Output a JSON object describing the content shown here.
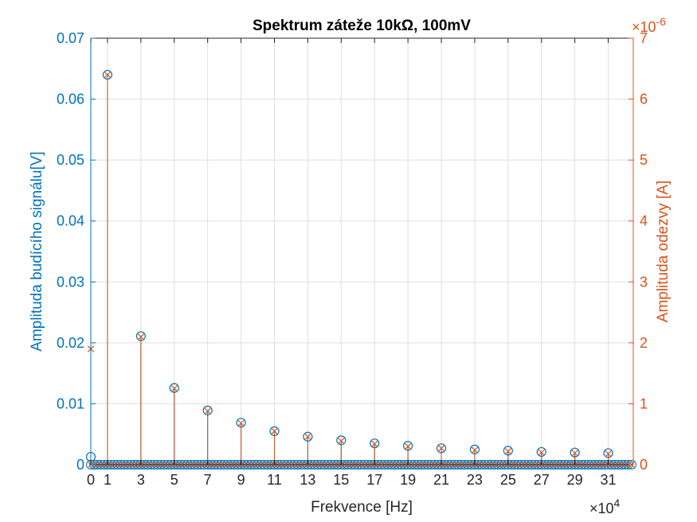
{
  "chart_data": {
    "type": "stem",
    "title": "Spektrum záteže 10kΩ, 100mV",
    "xlabel": "Frekvence [Hz]",
    "x_exponent_label": "×10",
    "x_exponent_power": "4",
    "ylabel_left": "Amplituda budícího signálu[V]",
    "ylabel_right": "Amplituda odezvy [A]",
    "y_right_exponent_label": "×10",
    "y_right_exponent_power": "-6",
    "xlim": [
      0,
      32.5
    ],
    "ylim_left": [
      0,
      0.07
    ],
    "ylim_right": [
      0,
      7
    ],
    "x_ticks": [
      0,
      1,
      3,
      5,
      7,
      9,
      11,
      13,
      15,
      17,
      19,
      21,
      23,
      25,
      27,
      29,
      31
    ],
    "y_left_ticks": [
      0,
      0.01,
      0.02,
      0.03,
      0.04,
      0.05,
      0.06,
      0.07
    ],
    "y_left_tick_labels": [
      "0",
      "0.01",
      "0.02",
      "0.03",
      "0.04",
      "0.05",
      "0.06",
      "0.07"
    ],
    "y_right_ticks": [
      0,
      1,
      2,
      3,
      4,
      5,
      6,
      7
    ],
    "y_right_tick_labels": [
      "0",
      "1",
      "2",
      "3",
      "4",
      "5",
      "6",
      "7"
    ],
    "grid": true,
    "colors": {
      "left": "#0072BD",
      "right": "#D95319",
      "grid": "#dfdfdf",
      "axes": "#262626"
    },
    "floor_step": 0.2,
    "series": [
      {
        "name": "",
        "axis": "left",
        "marker": "circle",
        "x": [
          0,
          1,
          3,
          5,
          7,
          9,
          11,
          13,
          15,
          17,
          19,
          21,
          23,
          25,
          27,
          29,
          31
        ],
        "values": [
          0.0013,
          0.064,
          0.0211,
          0.0126,
          0.0089,
          0.0069,
          0.0055,
          0.0046,
          0.004,
          0.0035,
          0.0031,
          0.0027,
          0.0025,
          0.0023,
          0.0021,
          0.002,
          0.0019
        ]
      },
      {
        "name": "",
        "axis": "right",
        "marker": "x",
        "x": [
          0,
          1,
          3,
          5,
          7,
          9,
          11,
          13,
          15,
          17,
          19,
          21,
          23,
          25,
          27,
          29,
          31
        ],
        "values": [
          1.9,
          6.4,
          2.1,
          1.25,
          0.88,
          0.68,
          0.55,
          0.46,
          0.39,
          0.34,
          0.3,
          0.27,
          0.24,
          0.22,
          0.2,
          0.19,
          0.18
        ]
      }
    ]
  }
}
